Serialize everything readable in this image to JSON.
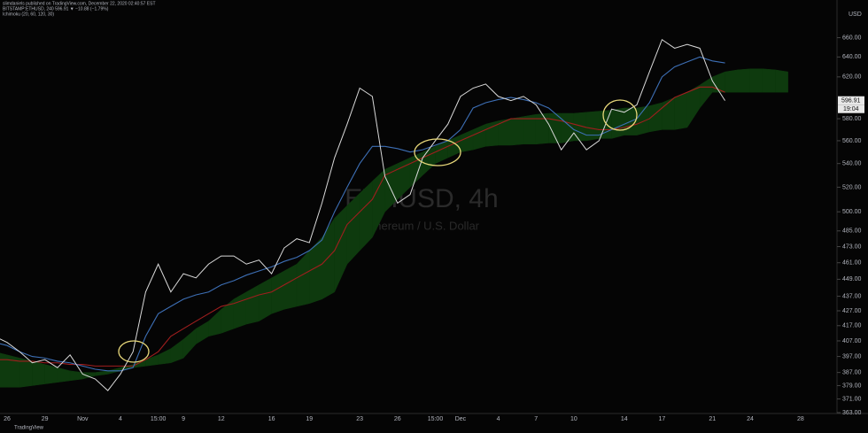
{
  "chart_data": {
    "type": "line",
    "header": [
      "slimdaniels published on TradingView.com, December 22, 2020 02:40:57 EST",
      "BITSTAMP:ETHUSD, 240  596.91 ▼ −10.88 (−1.79%)",
      "Ichimoku (20, 60, 120, 30)"
    ],
    "watermark": {
      "symbol": "ETHUSD, 4h",
      "description": "Ethereum / U.S. Dollar"
    },
    "currency": "USD",
    "last_price": 596.91,
    "countdown": "19:04",
    "brand": "TradingView",
    "log_scale": true,
    "ylim": [
      363,
      693
    ],
    "yticks": [
      {
        "value": 363,
        "label": "363.00"
      },
      {
        "value": 371,
        "label": "371.00"
      },
      {
        "value": 379,
        "label": "379.00"
      },
      {
        "value": 387,
        "label": "387.00"
      },
      {
        "value": 397,
        "label": "397.00"
      },
      {
        "value": 407,
        "label": "407.00"
      },
      {
        "value": 417,
        "label": "417.00"
      },
      {
        "value": 427,
        "label": "427.00"
      },
      {
        "value": 437,
        "label": "437.00"
      },
      {
        "value": 449,
        "label": "449.00"
      },
      {
        "value": 461,
        "label": "461.00"
      },
      {
        "value": 473,
        "label": "473.00"
      },
      {
        "value": 485,
        "label": "485.00"
      },
      {
        "value": 500,
        "label": "500.00"
      },
      {
        "value": 520,
        "label": "520.00"
      },
      {
        "value": 540,
        "label": "540.00"
      },
      {
        "value": 560,
        "label": "560.00"
      },
      {
        "value": 580,
        "label": "580.00"
      },
      {
        "value": 620,
        "label": "620.00"
      },
      {
        "value": 640,
        "label": "640.00"
      },
      {
        "value": 660,
        "label": "660.00"
      }
    ],
    "categories": [
      null,
      "26",
      null,
      null,
      "29",
      null,
      null,
      "Nov",
      null,
      null,
      "4",
      null,
      null,
      "15:00",
      null,
      "9",
      null,
      null,
      "12",
      null,
      null,
      null,
      "16",
      null,
      null,
      "19",
      null,
      null,
      null,
      "23",
      null,
      null,
      "26",
      null,
      null,
      "15:00",
      null,
      "Dec",
      null,
      null,
      "4",
      null,
      null,
      "7",
      null,
      null,
      "10",
      null,
      null,
      null,
      "14",
      null,
      null,
      "17",
      null,
      null,
      null,
      "21",
      null,
      null,
      "24",
      null,
      null,
      null,
      "28",
      null,
      null
    ],
    "series": [
      {
        "color": "#d9d9d9",
        "values": [
          410,
          406,
          400,
          393,
          395,
          390,
          398,
          386,
          383,
          376,
          386,
          400,
          440,
          460,
          440,
          453,
          450,
          460,
          466,
          466,
          460,
          463,
          453,
          472,
          479,
          476,
          507,
          545,
          575,
          609,
          601,
          529,
          507,
          514,
          545,
          560,
          575,
          601,
          609,
          613,
          601,
          597,
          601,
          593,
          575,
          552,
          567,
          552,
          560,
          589,
          586,
          593,
          625,
          658,
          649,
          653,
          649,
          616,
          597,
          null,
          null,
          null,
          null,
          null,
          null,
          null,
          null
        ]
      },
      {
        "color": "#3d6fb5",
        "values": [
          406,
          404,
          400,
          397,
          396,
          394,
          393,
          391,
          389,
          388,
          388,
          390,
          410,
          425,
          430,
          435,
          438,
          440,
          445,
          448,
          452,
          455,
          458,
          462,
          465,
          470,
          478,
          500,
          520,
          540,
          555,
          555,
          553,
          550,
          552,
          556,
          560,
          570,
          590,
          595,
          598,
          600,
          598,
          595,
          590,
          580,
          570,
          565,
          565,
          570,
          575,
          580,
          595,
          620,
          630,
          635,
          640,
          636,
          634,
          null,
          null,
          null,
          null,
          null,
          null,
          null,
          null
        ]
      },
      {
        "color": "#a01e1e",
        "values": [
          395,
          395,
          394,
          394,
          393,
          393,
          392,
          392,
          391,
          391,
          391,
          391,
          395,
          400,
          410,
          415,
          420,
          425,
          430,
          432,
          435,
          438,
          440,
          445,
          450,
          455,
          460,
          470,
          490,
          500,
          510,
          530,
          535,
          540,
          545,
          550,
          555,
          560,
          565,
          570,
          575,
          580,
          580,
          580,
          580,
          578,
          575,
          572,
          570,
          570,
          572,
          575,
          580,
          590,
          600,
          605,
          610,
          610,
          605,
          null,
          null,
          null,
          null,
          null,
          null,
          null,
          null
        ]
      }
    ],
    "cloud": {
      "color": "#0e3a0e",
      "span_a": [
        400,
        398,
        396,
        394,
        392,
        390,
        388,
        387,
        387,
        388,
        390,
        392,
        395,
        398,
        402,
        408,
        415,
        420,
        428,
        435,
        440,
        445,
        450,
        455,
        460,
        470,
        480,
        495,
        505,
        515,
        525,
        535,
        540,
        545,
        550,
        555,
        560,
        565,
        570,
        575,
        578,
        580,
        582,
        584,
        585,
        585,
        585,
        586,
        587,
        588,
        590,
        590,
        592,
        595,
        600,
        605,
        612,
        620,
        625,
        627,
        628,
        628,
        627,
        625,
        null,
        null,
        null
      ],
      "span_b": [
        378,
        378,
        378,
        379,
        380,
        381,
        382,
        383,
        385,
        386,
        388,
        390,
        391,
        392,
        393,
        396,
        405,
        410,
        412,
        415,
        418,
        420,
        425,
        428,
        430,
        432,
        435,
        440,
        460,
        470,
        480,
        500,
        510,
        520,
        530,
        540,
        545,
        550,
        552,
        555,
        556,
        556,
        557,
        557,
        558,
        558,
        560,
        560,
        562,
        562,
        565,
        565,
        568,
        570,
        570,
        572,
        590,
        605,
        605,
        605,
        605,
        605,
        605,
        605,
        null,
        null,
        null
      ]
    }
  }
}
